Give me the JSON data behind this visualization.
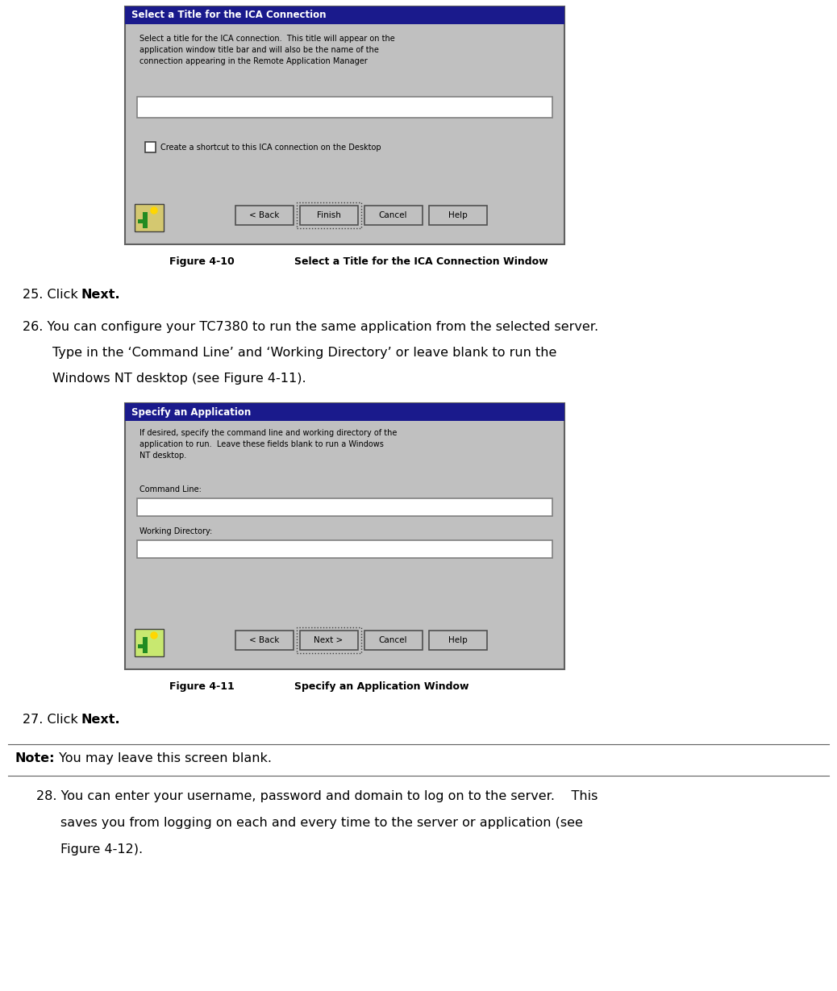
{
  "fig_width": 10.38,
  "fig_height": 12.29,
  "dpi": 100,
  "bg_color": "#ffffff",
  "title_bar_color": "#1a1a8c",
  "title_bar_text_color": "#ffffff",
  "dialog_bg": "#c0c0c0",
  "text_color": "#000000",
  "fig1_title": "Select a Title for the ICA Connection",
  "fig1_desc_line1": "Select a title for the ICA connection.  This title will appear on the",
  "fig1_desc_line2": "application window title bar and will also be the name of the",
  "fig1_desc_line3": "connection appearing in the Remote Application Manager",
  "fig1_checkbox_label": "Create a shortcut to this ICA connection on the Desktop",
  "fig1_btn1": "< Back",
  "fig1_btn2": "Finish",
  "fig1_btn3": "Cancel",
  "fig1_btn4": "Help",
  "fig1_caption_label": "Figure 4-10",
  "fig1_caption_text": "Select a Title for the ICA Connection Window",
  "fig2_title": "Specify an Application",
  "fig2_desc_line1": "If desired, specify the command line and working directory of the",
  "fig2_desc_line2": "application to run.  Leave these fields blank to run a Windows",
  "fig2_desc_line3": "NT desktop.",
  "fig2_label1": "Command Line:",
  "fig2_label2": "Working Directory:",
  "fig2_btn1": "< Back",
  "fig2_btn2": "Next >",
  "fig2_btn3": "Cancel",
  "fig2_btn4": "Help",
  "fig2_caption_label": "Figure 4-11",
  "fig2_caption_text": "Specify an Application Window",
  "step25_normal": "25. Click ",
  "step25_bold": "Next",
  "step26_line1": "26. You can configure your TC7380 to run the same application from the selected server.",
  "step26_line2": "Type in the ‘Command Line’ and ‘Working Directory’ or leave blank to run the",
  "step26_line3": "Windows NT desktop (see Figure 4-11).",
  "step27_normal": "27. Click ",
  "step27_bold": "Next",
  "note_bold": "Note:",
  "note_normal": " You may leave this screen blank.",
  "step28_line1": "28. You can enter your username, password and domain to log on to the server.    This",
  "step28_line2": "saves you from logging on each and every time to the server or application (see",
  "step28_line3": "Figure 4-12)."
}
